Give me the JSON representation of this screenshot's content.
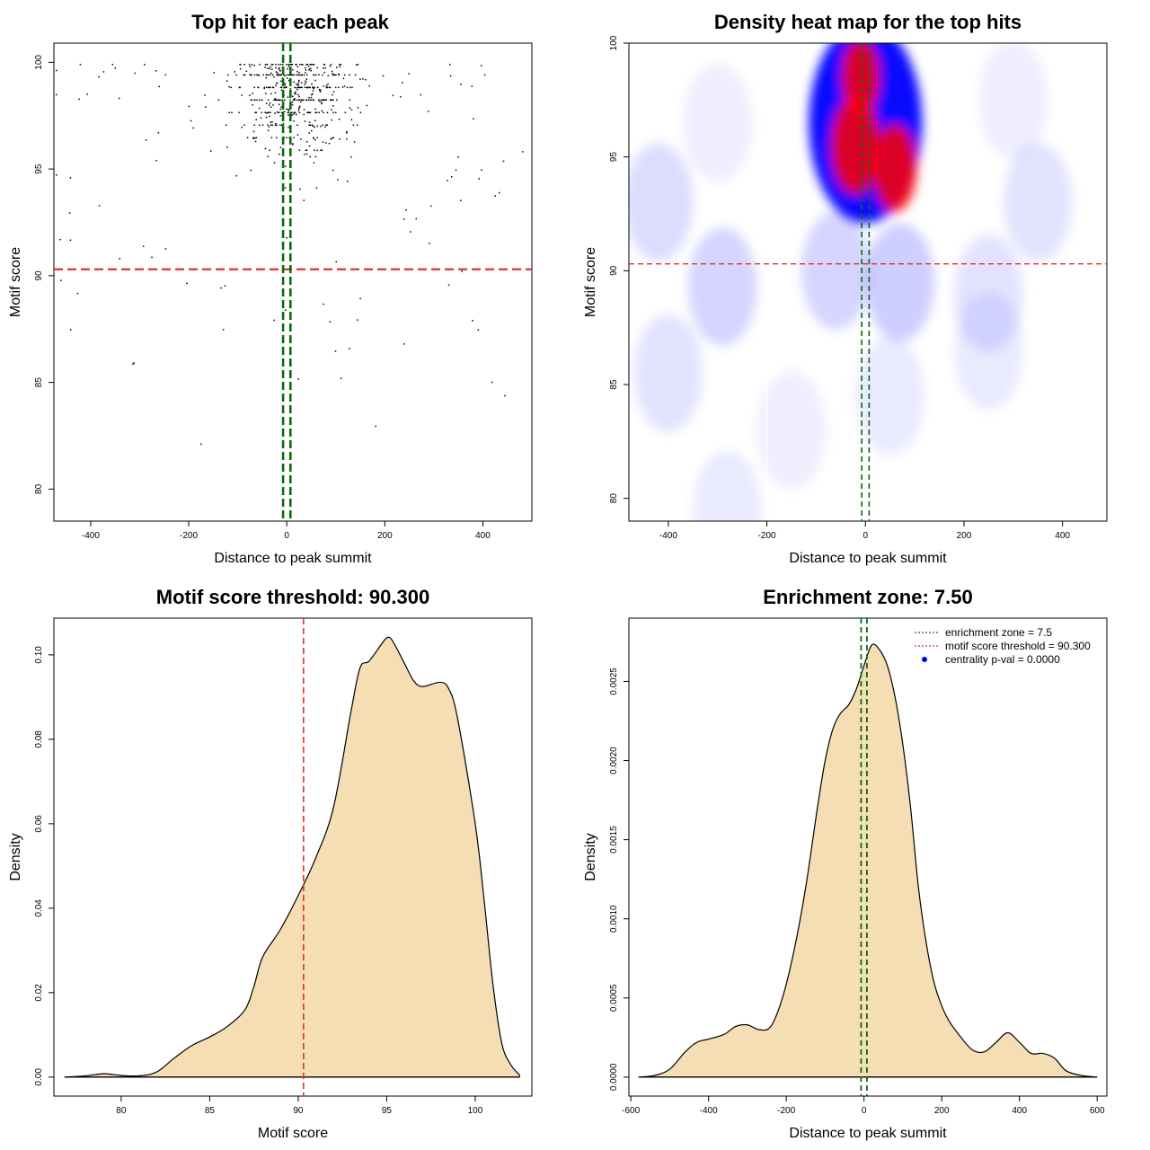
{
  "colors": {
    "axis": "#000000",
    "points": "#000000",
    "threshold_line": "#e03030",
    "enrichment_line": "#0a6b0a",
    "density_fill": "#f5deb3",
    "heat_low": "#ffffff",
    "heat_mid": "#0000ff",
    "heat_high": "#ff0000",
    "legend_dot": "#0000ff"
  },
  "chart_data": [
    {
      "id": "scatter",
      "type": "scatter",
      "title": "Top hit for each peak",
      "xlabel": "Distance to peak summit",
      "ylabel": "Motif score",
      "xlim": [
        -475,
        500
      ],
      "ylim": [
        78.5,
        100.9
      ],
      "xticks": [
        -400,
        -200,
        0,
        200,
        400
      ],
      "yticks": [
        80,
        85,
        90,
        95,
        100
      ],
      "xtick_labels": [
        "-400",
        "-200",
        "0",
        "200",
        "400"
      ],
      "ytick_labels": [
        "80",
        "85",
        "90",
        "95",
        "100"
      ],
      "hline": 90.3,
      "vlines": [
        -7.5,
        7.5
      ],
      "point_count": 620,
      "point_note": "approx. 620 points; top hits concentrated between -200 and 200 with scores 90-100"
    },
    {
      "id": "heatmap",
      "type": "heatmap",
      "title": "Density heat map for the top hits",
      "xlabel": "Distance to peak summit",
      "ylabel": "Motif score",
      "xlim": [
        -480,
        490
      ],
      "ylim": [
        79,
        100
      ],
      "xticks": [
        -400,
        -200,
        0,
        200,
        400
      ],
      "yticks": [
        80,
        85,
        90,
        95,
        100
      ],
      "xtick_labels": [
        "-400",
        "-200",
        "0",
        "200",
        "400"
      ],
      "ytick_labels": [
        "80",
        "85",
        "90",
        "95",
        "100"
      ],
      "hline": 90.3,
      "vlines": [
        -7.5,
        7.5
      ],
      "white_lines_x": [
        -200,
        160
      ],
      "blobs": [
        {
          "x": 0,
          "y": 96.5,
          "w": 1.0,
          "kind": "core"
        },
        {
          "x": -20,
          "y": 95.5,
          "w": 0.9,
          "kind": "hot"
        },
        {
          "x": 60,
          "y": 94.5,
          "w": 0.8,
          "kind": "hot"
        },
        {
          "x": -10,
          "y": 98.5,
          "w": 0.7,
          "kind": "hot"
        },
        {
          "x": 70,
          "y": 89.5,
          "w": 0.35,
          "kind": "cool"
        },
        {
          "x": -60,
          "y": 90.0,
          "w": 0.3,
          "kind": "cool"
        },
        {
          "x": -290,
          "y": 89.3,
          "w": 0.3,
          "kind": "cool"
        },
        {
          "x": -420,
          "y": 93.0,
          "w": 0.25,
          "kind": "cool"
        },
        {
          "x": -400,
          "y": 85.5,
          "w": 0.2,
          "kind": "cool"
        },
        {
          "x": 350,
          "y": 93.0,
          "w": 0.2,
          "kind": "cool"
        },
        {
          "x": 250,
          "y": 89.0,
          "w": 0.2,
          "kind": "cool"
        },
        {
          "x": 250,
          "y": 86.5,
          "w": 0.15,
          "kind": "cool"
        },
        {
          "x": 50,
          "y": 84.5,
          "w": 0.15,
          "kind": "cool"
        },
        {
          "x": -150,
          "y": 83.0,
          "w": 0.12,
          "kind": "cool"
        },
        {
          "x": -280,
          "y": 79.5,
          "w": 0.15,
          "kind": "cool"
        },
        {
          "x": -300,
          "y": 96.5,
          "w": 0.12,
          "kind": "cool"
        },
        {
          "x": 300,
          "y": 97.5,
          "w": 0.12,
          "kind": "cool"
        }
      ]
    },
    {
      "id": "density-score",
      "type": "area",
      "title": "Motif score threshold: 90.300",
      "xlabel": "Motif score",
      "ylabel": "Density",
      "xlim": [
        76.2,
        103.2
      ],
      "ylim": [
        -0.0045,
        0.1087
      ],
      "xticks": [
        80,
        85,
        90,
        95,
        100
      ],
      "yticks": [
        0.0,
        0.02,
        0.04,
        0.06,
        0.08,
        0.1
      ],
      "xtick_labels": [
        "80",
        "85",
        "90",
        "95",
        "100"
      ],
      "ytick_labels": [
        "0.00",
        "0.02",
        "0.04",
        "0.06",
        "0.08",
        "0.10"
      ],
      "vline": 90.3,
      "x": [
        76.8,
        78,
        79,
        80,
        81,
        82,
        83,
        84,
        85,
        86,
        87,
        87.5,
        88,
        89,
        90,
        91,
        92,
        93,
        93.5,
        94,
        94.7,
        95,
        95.3,
        96,
        96.5,
        97,
        98,
        98.5,
        99,
        100,
        100.5,
        101,
        101.5,
        102,
        102.5
      ],
      "y": [
        0.0,
        0.0003,
        0.0008,
        0.0004,
        0.0003,
        0.0012,
        0.0045,
        0.0075,
        0.0095,
        0.012,
        0.016,
        0.0215,
        0.0285,
        0.035,
        0.043,
        0.052,
        0.064,
        0.087,
        0.097,
        0.0985,
        0.1025,
        0.104,
        0.1035,
        0.098,
        0.094,
        0.0925,
        0.0935,
        0.092,
        0.085,
        0.06,
        0.042,
        0.022,
        0.008,
        0.003,
        0.0005
      ]
    },
    {
      "id": "density-distance",
      "type": "area",
      "title": "Enrichment zone: 7.50",
      "xlabel": "Distance to peak summit",
      "ylabel": "Density",
      "xlim": [
        -605,
        625
      ],
      "ylim": [
        -0.00012,
        0.0029
      ],
      "xticks": [
        -600,
        -400,
        -200,
        0,
        200,
        400,
        600
      ],
      "yticks": [
        0.0,
        0.0005,
        0.001,
        0.0015,
        0.002,
        0.0025
      ],
      "xtick_labels": [
        "-600",
        "-400",
        "-200",
        "0",
        "200",
        "400",
        "600"
      ],
      "ytick_labels": [
        "0.0000",
        "0.0005",
        "0.0010",
        "0.0015",
        "0.0020",
        "0.0025"
      ],
      "vlines": [
        -7.5,
        7.5
      ],
      "x": [
        -580,
        -540,
        -500,
        -460,
        -430,
        -400,
        -360,
        -330,
        -300,
        -270,
        -240,
        -210,
        -180,
        -150,
        -120,
        -100,
        -80,
        -60,
        -40,
        -20,
        0,
        20,
        40,
        60,
        80,
        100,
        120,
        140,
        160,
        180,
        200,
        220,
        250,
        280,
        310,
        340,
        370,
        400,
        430,
        460,
        490,
        520,
        560,
        600
      ],
      "y": [
        0.0,
        1e-05,
        5e-05,
        0.00016,
        0.00022,
        0.00024,
        0.00027,
        0.00032,
        0.00033,
        0.0003,
        0.00032,
        0.0005,
        0.0008,
        0.0012,
        0.0017,
        0.002,
        0.0022,
        0.0023,
        0.00235,
        0.00245,
        0.0026,
        0.00273,
        0.0027,
        0.0026,
        0.0024,
        0.0021,
        0.0017,
        0.0012,
        0.00085,
        0.0006,
        0.00045,
        0.00035,
        0.00025,
        0.00017,
        0.00016,
        0.00022,
        0.00028,
        0.00022,
        0.00015,
        0.00015,
        0.00012,
        4e-05,
        1e-05,
        0.0
      ]
    }
  ],
  "legend": {
    "enrichment": "enrichment zone = 7.5",
    "threshold": "motif score threshold = 90.300",
    "pval": "centrality p-val = 0.0000"
  }
}
